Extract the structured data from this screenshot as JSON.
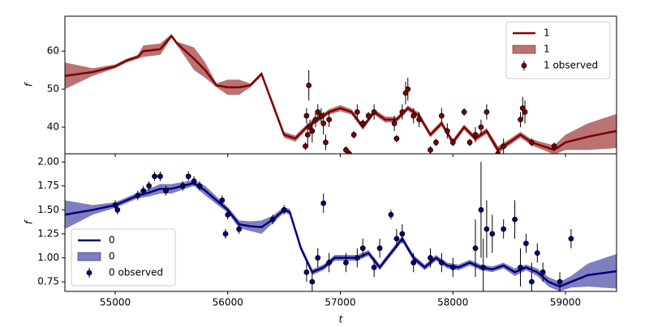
{
  "chart_data": [
    {
      "type": "line",
      "ylabel": "f",
      "xlim": [
        54553,
        59454
      ],
      "ylim": [
        33,
        69.2
      ],
      "yticks": [
        40,
        50,
        60
      ],
      "legend": "upper right",
      "series": [
        {
          "name": "1",
          "color": "#800000",
          "x": [
            54553,
            54800,
            55000,
            55100,
            55150,
            55200,
            55250,
            55400,
            55500,
            55550,
            55700,
            55800,
            55900,
            56000,
            56100,
            56200,
            56300,
            56400,
            56500,
            56600,
            56700,
            56800,
            56900,
            57000,
            57100,
            57200,
            57300,
            57400,
            57500,
            57600,
            57700,
            57800,
            57900,
            58000,
            58100,
            58200,
            58300,
            58400,
            58500,
            58600,
            58700,
            58800,
            58900,
            59000,
            59200,
            59454
          ],
          "values": [
            53.5,
            54.5,
            56,
            57.5,
            58,
            58.5,
            60,
            60.5,
            64,
            62,
            58,
            55,
            51,
            50.5,
            50.5,
            51,
            54,
            46,
            38,
            37,
            40,
            42,
            44,
            45,
            44,
            40,
            44,
            42,
            42,
            45,
            43,
            38,
            41,
            36,
            40,
            37,
            39,
            34,
            36,
            38,
            36,
            35,
            34,
            36,
            37.5,
            39
          ]
        },
        {
          "name": "1",
          "kind": "band",
          "color": "#800000",
          "alpha": 0.55,
          "errors": [
            3.5,
            1,
            0.5,
            0.5,
            0.5,
            0.5,
            1.5,
            1.5,
            0.5,
            0.5,
            3,
            2,
            0.5,
            2,
            2,
            0.5,
            0.5,
            0.8,
            0.8,
            0.8,
            0.7,
            0.7,
            0.7,
            0.8,
            0.7,
            0.7,
            0.7,
            0.8,
            0.7,
            0.7,
            0.8,
            0.7,
            0.7,
            0.8,
            0.7,
            0.7,
            0.8,
            1,
            0.8,
            0.8,
            0.8,
            1,
            1.2,
            2,
            3.5,
            4.5
          ]
        },
        {
          "name": "1 observed",
          "kind": "errorbar",
          "color": "#800000",
          "x": [
            56690,
            56700,
            56710,
            56720,
            56730,
            56750,
            56780,
            56800,
            56830,
            56850,
            56870,
            56900,
            57050,
            57080,
            57120,
            57150,
            57200,
            57250,
            57300,
            57480,
            57500,
            57550,
            57580,
            57600,
            57650,
            57700,
            57800,
            57850,
            57900,
            57950,
            58000,
            58100,
            58150,
            58200,
            58250,
            58300,
            58400,
            58450,
            58600,
            58620,
            58640,
            58700,
            58900
          ],
          "values": [
            35,
            43,
            38,
            51,
            40,
            39,
            42,
            44,
            43,
            41,
            36,
            42,
            34,
            33,
            38,
            44,
            41,
            43,
            44,
            41,
            37,
            44,
            49,
            50,
            43,
            42,
            34,
            36,
            43,
            39,
            36,
            44,
            36,
            38,
            40,
            44,
            33,
            35,
            42,
            45,
            44,
            36,
            35
          ],
          "errors": [
            1,
            2,
            3,
            4,
            2,
            3,
            2,
            2,
            2,
            3,
            2,
            2,
            1,
            1,
            1,
            2,
            1,
            1,
            2,
            2,
            1,
            2,
            3,
            3,
            2,
            2,
            1,
            1,
            2,
            2,
            1,
            1,
            1,
            2,
            2,
            2,
            1,
            2,
            2,
            3,
            3,
            1,
            1
          ]
        }
      ]
    },
    {
      "type": "line",
      "ylabel": "f",
      "xlabel": "t",
      "xlim": [
        54553,
        59454
      ],
      "ylim": [
        0.65,
        2.085
      ],
      "xticks": [
        55000,
        56000,
        57000,
        58000,
        59000
      ],
      "yticks": [
        {
          "value": 0.75,
          "label": "0.75"
        },
        {
          "value": 1,
          "label": "1.00"
        },
        {
          "value": 1.25,
          "label": "1.25"
        },
        {
          "value": 1.5,
          "label": "1.50"
        },
        {
          "value": 1.75,
          "label": "1.75"
        },
        {
          "value": 2,
          "label": "2.00"
        }
      ],
      "legend": "lower left",
      "series": [
        {
          "name": "0",
          "color": "#000080",
          "x": [
            54553,
            54800,
            55000,
            55200,
            55300,
            55400,
            55500,
            55600,
            55700,
            55800,
            55900,
            56000,
            56100,
            56200,
            56300,
            56400,
            56500,
            56550,
            56650,
            56750,
            56850,
            56950,
            57050,
            57150,
            57250,
            57350,
            57450,
            57550,
            57650,
            57750,
            57850,
            57950,
            58050,
            58150,
            58250,
            58350,
            58450,
            58550,
            58650,
            58750,
            58850,
            58950,
            59050,
            59200,
            59454
          ],
          "values": [
            1.45,
            1.5,
            1.55,
            1.65,
            1.68,
            1.72,
            1.72,
            1.75,
            1.78,
            1.7,
            1.6,
            1.5,
            1.35,
            1.33,
            1.32,
            1.4,
            1.5,
            1.48,
            1.1,
            0.85,
            0.9,
            1,
            1,
            1,
            1.05,
            0.9,
            1.05,
            1.2,
            1,
            0.9,
            1,
            0.92,
            0.9,
            0.95,
            0.9,
            0.88,
            0.92,
            0.85,
            0.9,
            0.85,
            0.75,
            0.7,
            0.75,
            0.82,
            0.86
          ]
        },
        {
          "name": "0",
          "kind": "band",
          "color": "#000080",
          "alpha": 0.5,
          "errors": [
            0.15,
            0.05,
            0.03,
            0.03,
            0.04,
            0.05,
            0.05,
            0.04,
            0.03,
            0.05,
            0.04,
            0.03,
            0.04,
            0.05,
            0.07,
            0.04,
            0.03,
            0.03,
            0.03,
            0.03,
            0.03,
            0.03,
            0.03,
            0.03,
            0.03,
            0.03,
            0.03,
            0.03,
            0.03,
            0.03,
            0.03,
            0.03,
            0.03,
            0.03,
            0.03,
            0.03,
            0.03,
            0.04,
            0.03,
            0.04,
            0.05,
            0.05,
            0.06,
            0.12,
            0.18
          ]
        },
        {
          "name": "0 observed",
          "kind": "errorbar",
          "color": "#000080",
          "x": [
            55000,
            55020,
            55200,
            55250,
            55300,
            55350,
            55400,
            55450,
            55600,
            55650,
            55700,
            55750,
            55950,
            55980,
            56000,
            56100,
            56400,
            56500,
            56700,
            56750,
            56800,
            56850,
            56900,
            57050,
            57150,
            57200,
            57300,
            57350,
            57450,
            57500,
            57550,
            57650,
            57800,
            57900,
            58000,
            58200,
            58250,
            58270,
            58300,
            58350,
            58450,
            58550,
            58600,
            58650,
            58700,
            58750,
            58800,
            58950,
            59050
          ],
          "values": [
            1.55,
            1.5,
            1.65,
            1.7,
            1.75,
            1.85,
            1.85,
            1.7,
            1.75,
            1.85,
            1.8,
            1.75,
            1.6,
            1.25,
            1.45,
            1.3,
            1.4,
            1.5,
            0.85,
            0.75,
            1,
            1.57,
            0.95,
            0.95,
            1,
            1.1,
            0.9,
            1.1,
            1.45,
            1.2,
            1.25,
            0.95,
            1,
            0.95,
            0.9,
            1.1,
            1.5,
            0.9,
            1.3,
            1.25,
            1.3,
            1.4,
            0.9,
            1.15,
            0.75,
            1.05,
            0.85,
            0.75,
            1.2
          ],
          "errors": [
            0.05,
            0.05,
            0.05,
            0.05,
            0.05,
            0.05,
            0.05,
            0.05,
            0.05,
            0.05,
            0.05,
            0.05,
            0.05,
            0.05,
            0.05,
            0.05,
            0.05,
            0.05,
            0.1,
            0.1,
            0.1,
            0.1,
            0.1,
            0.1,
            0.1,
            0.1,
            0.1,
            0.1,
            0.05,
            0.1,
            0.1,
            0.1,
            0.1,
            0.1,
            0.1,
            0.3,
            0.5,
            0.3,
            0.3,
            0.2,
            0.1,
            0.2,
            0.2,
            0.1,
            0.2,
            0.1,
            0.1,
            0.1,
            0.1
          ]
        }
      ]
    }
  ]
}
